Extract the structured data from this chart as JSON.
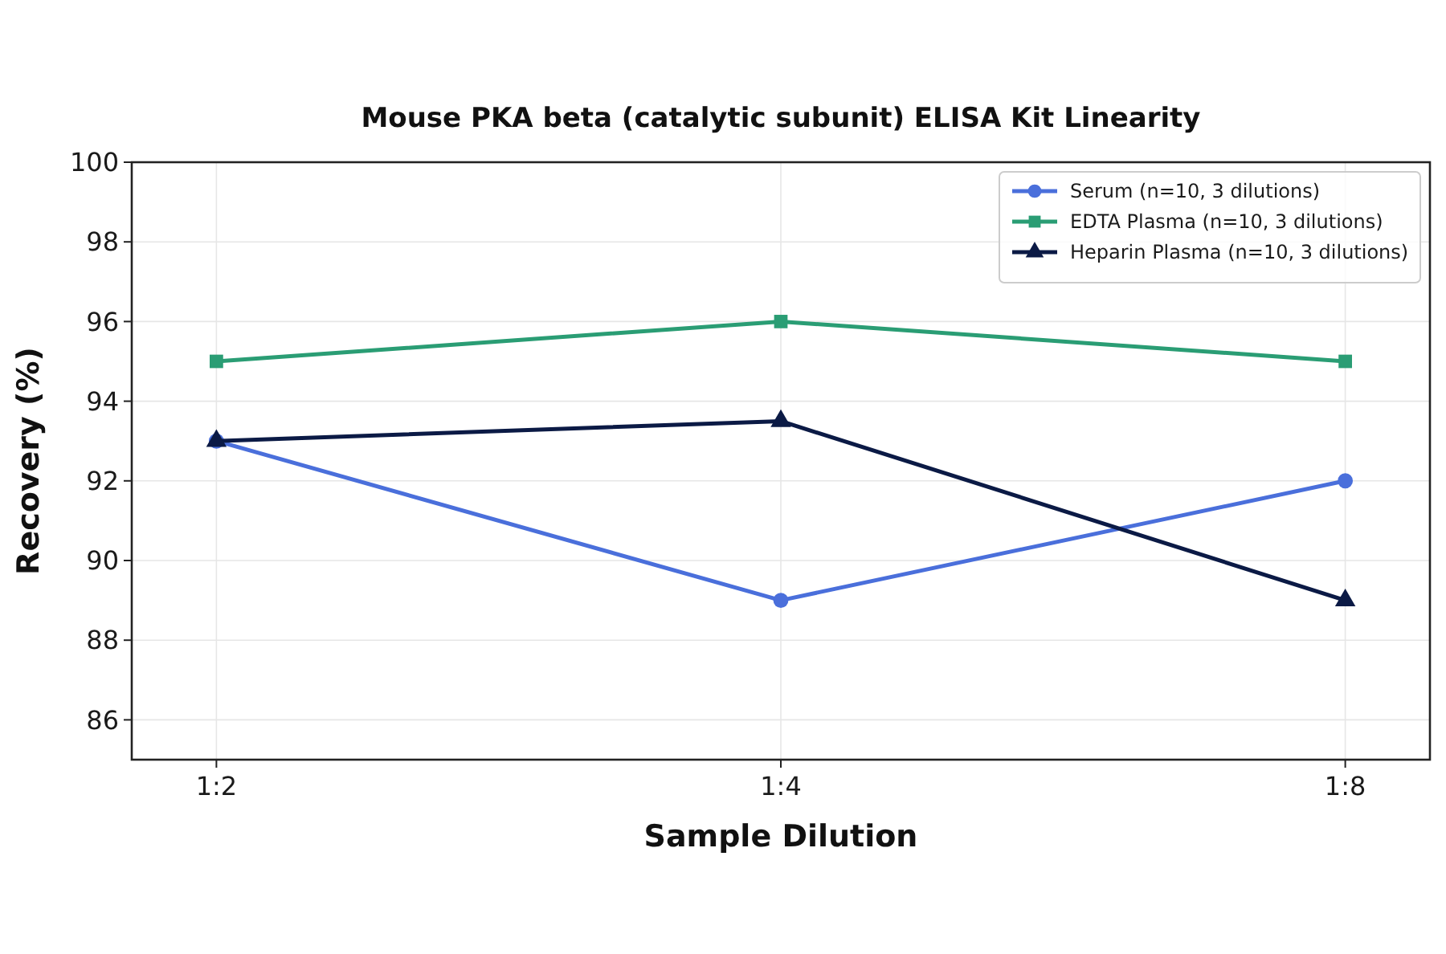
{
  "chart_data": {
    "type": "line",
    "title": "Mouse PKA beta (catalytic subunit) ELISA Kit Linearity",
    "xlabel": "Sample Dilution",
    "ylabel": "Recovery (%)",
    "categories": [
      "1:2",
      "1:4",
      "1:8"
    ],
    "series": [
      {
        "name": "Serum (n=10, 3 dilutions)",
        "color": "#4a6fdb",
        "marker": "circle",
        "values": [
          93,
          89,
          92
        ]
      },
      {
        "name": "EDTA Plasma (n=10, 3 dilutions)",
        "color": "#2a9d74",
        "marker": "square",
        "values": [
          95,
          96,
          95
        ]
      },
      {
        "name": "Heparin Plasma (n=10, 3 dilutions)",
        "color": "#0b1a45",
        "marker": "triangle",
        "values": [
          93,
          93.5,
          89
        ]
      }
    ],
    "ylim": [
      85,
      100
    ],
    "yticks": [
      86,
      88,
      90,
      92,
      94,
      96,
      98,
      100
    ],
    "grid": true,
    "legend": "top right",
    "line_style": "solid"
  }
}
